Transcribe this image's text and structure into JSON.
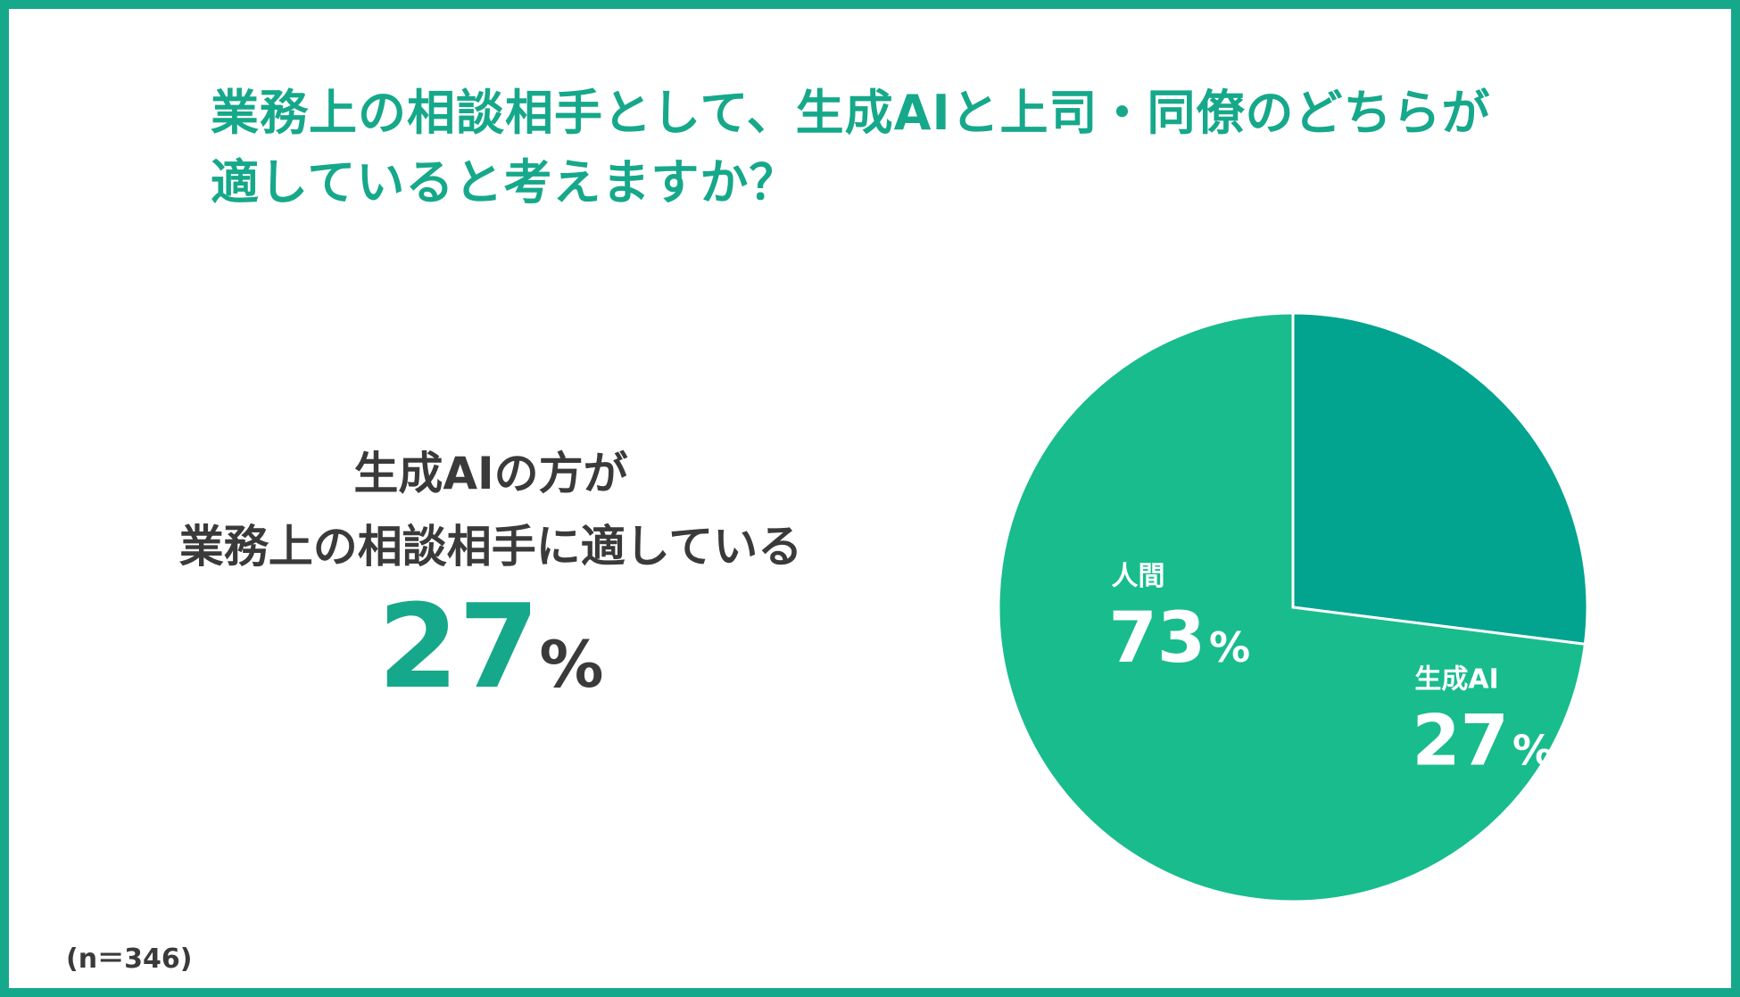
{
  "chart_data": {
    "type": "pie",
    "title": "業務上の相談相手として、生成AIと上司・同僚のどちらが 適していると考えますか？",
    "title_lines": [
      "業務上の相談相手として、生成AIと上司・同僚のどちらが",
      "適していると考えますか？"
    ],
    "slices": [
      {
        "label": "生成AI",
        "value": 27,
        "color": "#02a48f"
      },
      {
        "label": "人間",
        "value": 73,
        "color": "#19bc8d"
      }
    ],
    "unit": "%",
    "separator_color": "#ffffff"
  },
  "highlight": {
    "lines": [
      "生成AIの方が",
      "業務上の相談相手に適している"
    ],
    "value": "27",
    "unit": "%"
  },
  "note": "(n＝346)",
  "colors": {
    "frame": "#16a88a",
    "title": "#16a88a",
    "text": "#3a3a3a",
    "highlight": "#16a88a"
  }
}
